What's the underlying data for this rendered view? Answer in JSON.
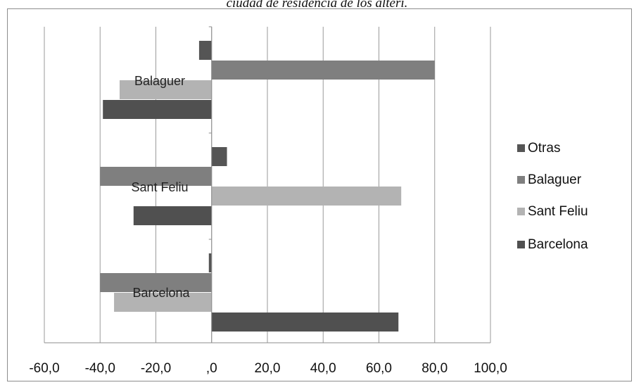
{
  "caption": "ciudad de residencia de los alteri.",
  "chart_data": {
    "type": "bar",
    "orientation": "horizontal",
    "categories": [
      "Balaguer",
      "Sant Feliu",
      "Barcelona"
    ],
    "series": [
      {
        "name": "Otras",
        "color": "#555555",
        "values": [
          -4.5,
          5.5,
          -1.0
        ]
      },
      {
        "name": "Balaguer",
        "color": "#7f7f7f",
        "values": [
          80.0,
          -40.0,
          -40.0
        ]
      },
      {
        "name": "Sant Feliu",
        "color": "#b3b3b3",
        "values": [
          -33.0,
          68.0,
          -35.0
        ]
      },
      {
        "name": "Barcelona",
        "color": "#505050",
        "values": [
          -39.0,
          -28.0,
          67.0
        ]
      }
    ],
    "xlim": [
      -60,
      100
    ],
    "xticks": [
      "-60,0",
      "-40,0",
      "-20,0",
      ",0",
      "20,0",
      "40,0",
      "60,0",
      "80,0",
      "100,0"
    ],
    "xtick_values": [
      -60,
      -40,
      -20,
      0,
      20,
      40,
      60,
      80,
      100
    ],
    "legend": [
      "Otras",
      "Balaguer",
      "Sant Feliu",
      "Barcelona"
    ],
    "legend_position": "right",
    "grid": true
  }
}
